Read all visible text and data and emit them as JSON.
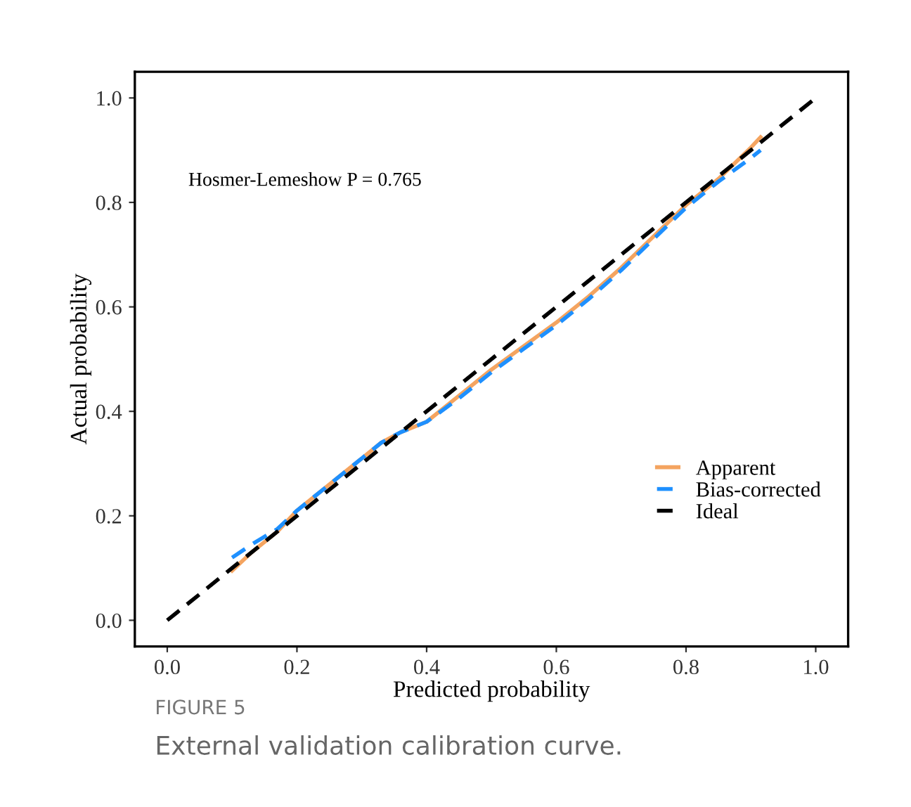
{
  "chart_data": {
    "type": "line",
    "xlabel": "Predicted probability",
    "ylabel": "Actual probability",
    "xlim": [
      -0.05,
      1.05
    ],
    "ylim": [
      -0.05,
      1.05
    ],
    "xticks": [
      {
        "value": 0,
        "label": "0.0"
      },
      0.2,
      0.4,
      0.6,
      0.8,
      {
        "value": 1,
        "label": "1.0"
      }
    ],
    "yticks": [
      {
        "value": 0,
        "label": "0.0"
      },
      0.2,
      0.4,
      0.6,
      0.8,
      {
        "value": 1,
        "label": "1.0"
      }
    ],
    "grid": false,
    "legend": "right",
    "series": [
      {
        "name": "Apparent",
        "color": "#f4a460",
        "line_style": "solid",
        "x": [
          0.1,
          0.13,
          0.17,
          0.2,
          0.25,
          0.3,
          0.33,
          0.36,
          0.4,
          0.45,
          0.5,
          0.55,
          0.6,
          0.65,
          0.7,
          0.75,
          0.8,
          0.85,
          0.9,
          0.915
        ],
        "values": [
          0.095,
          0.13,
          0.17,
          0.21,
          0.26,
          0.31,
          0.34,
          0.36,
          0.38,
          0.43,
          0.48,
          0.525,
          0.57,
          0.62,
          0.675,
          0.735,
          0.795,
          0.845,
          0.905,
          0.925
        ]
      },
      {
        "name": "Bias-corrected",
        "color": "#1e90ff",
        "line_style": "dashed",
        "x": [
          0.1,
          0.13,
          0.17,
          0.2,
          0.25,
          0.3,
          0.33,
          0.36,
          0.4,
          0.45,
          0.5,
          0.55,
          0.6,
          0.65,
          0.7,
          0.75,
          0.8,
          0.85,
          0.9,
          0.915
        ],
        "values": [
          0.12,
          0.145,
          0.175,
          0.21,
          0.26,
          0.31,
          0.34,
          0.36,
          0.38,
          0.425,
          0.475,
          0.52,
          0.565,
          0.615,
          0.67,
          0.73,
          0.79,
          0.84,
          0.885,
          0.9
        ]
      },
      {
        "name": "Ideal",
        "color": "#000000",
        "line_style": "dashed",
        "x": [
          0,
          1
        ],
        "values": [
          0,
          1
        ]
      }
    ],
    "annotations": [
      "Hosmer-Lemeshow P = 0.765",
      "FIGURE 5",
      "External validation calibration curve."
    ]
  }
}
